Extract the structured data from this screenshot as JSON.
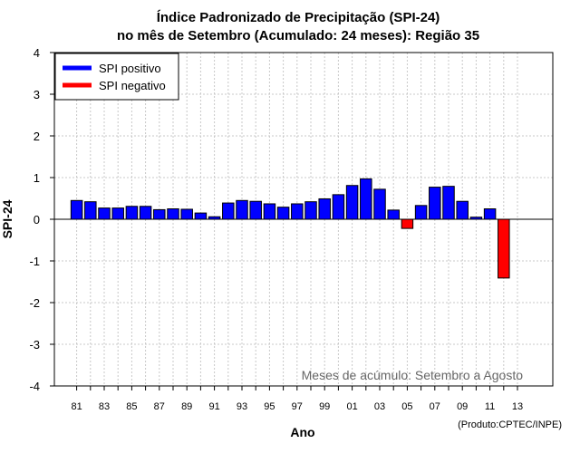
{
  "chart_data": {
    "type": "bar",
    "title_line1": "Índice Padronizado de Precipitação (SPI-24)",
    "title_line2": "no mês de Setembro (Acumulado: 24 meses): Região 35",
    "xlabel": "Ano",
    "ylabel": "SPI-24",
    "ylim": [
      -4,
      4
    ],
    "yticks": [
      "4",
      "3",
      "2",
      "1",
      "0",
      "-1",
      "-2",
      "-3",
      "-4"
    ],
    "xticks": [
      "81",
      "83",
      "85",
      "87",
      "89",
      "91",
      "93",
      "95",
      "97",
      "99",
      "01",
      "03",
      "05",
      "07",
      "09",
      "11",
      "13"
    ],
    "grid": true,
    "legend": {
      "position": "top-left",
      "entries": [
        {
          "label": "SPI positivo",
          "color": "#0000ff"
        },
        {
          "label": "SPI negativo",
          "color": "#ff0000"
        }
      ]
    },
    "annotation": "Meses de acúmulo: Setembro a Agosto",
    "credit": "(Produto:CPTEC/INPE)",
    "colors": {
      "positive": "#0000ff",
      "negative": "#ff0000"
    },
    "years": [
      1981,
      1982,
      1983,
      1984,
      1985,
      1986,
      1987,
      1988,
      1989,
      1990,
      1991,
      1992,
      1993,
      1994,
      1995,
      1996,
      1997,
      1998,
      1999,
      2000,
      2001,
      2002,
      2003,
      2004,
      2005,
      2006,
      2007,
      2008,
      2009,
      2010,
      2011,
      2012
    ],
    "values": [
      0.45,
      0.42,
      0.27,
      0.27,
      0.31,
      0.31,
      0.23,
      0.25,
      0.24,
      0.15,
      0.06,
      0.39,
      0.45,
      0.43,
      0.37,
      0.29,
      0.37,
      0.42,
      0.49,
      0.59,
      0.81,
      0.97,
      0.72,
      0.22,
      -0.22,
      0.33,
      0.77,
      0.79,
      0.43,
      0.05,
      0.25,
      -1.41
    ]
  }
}
